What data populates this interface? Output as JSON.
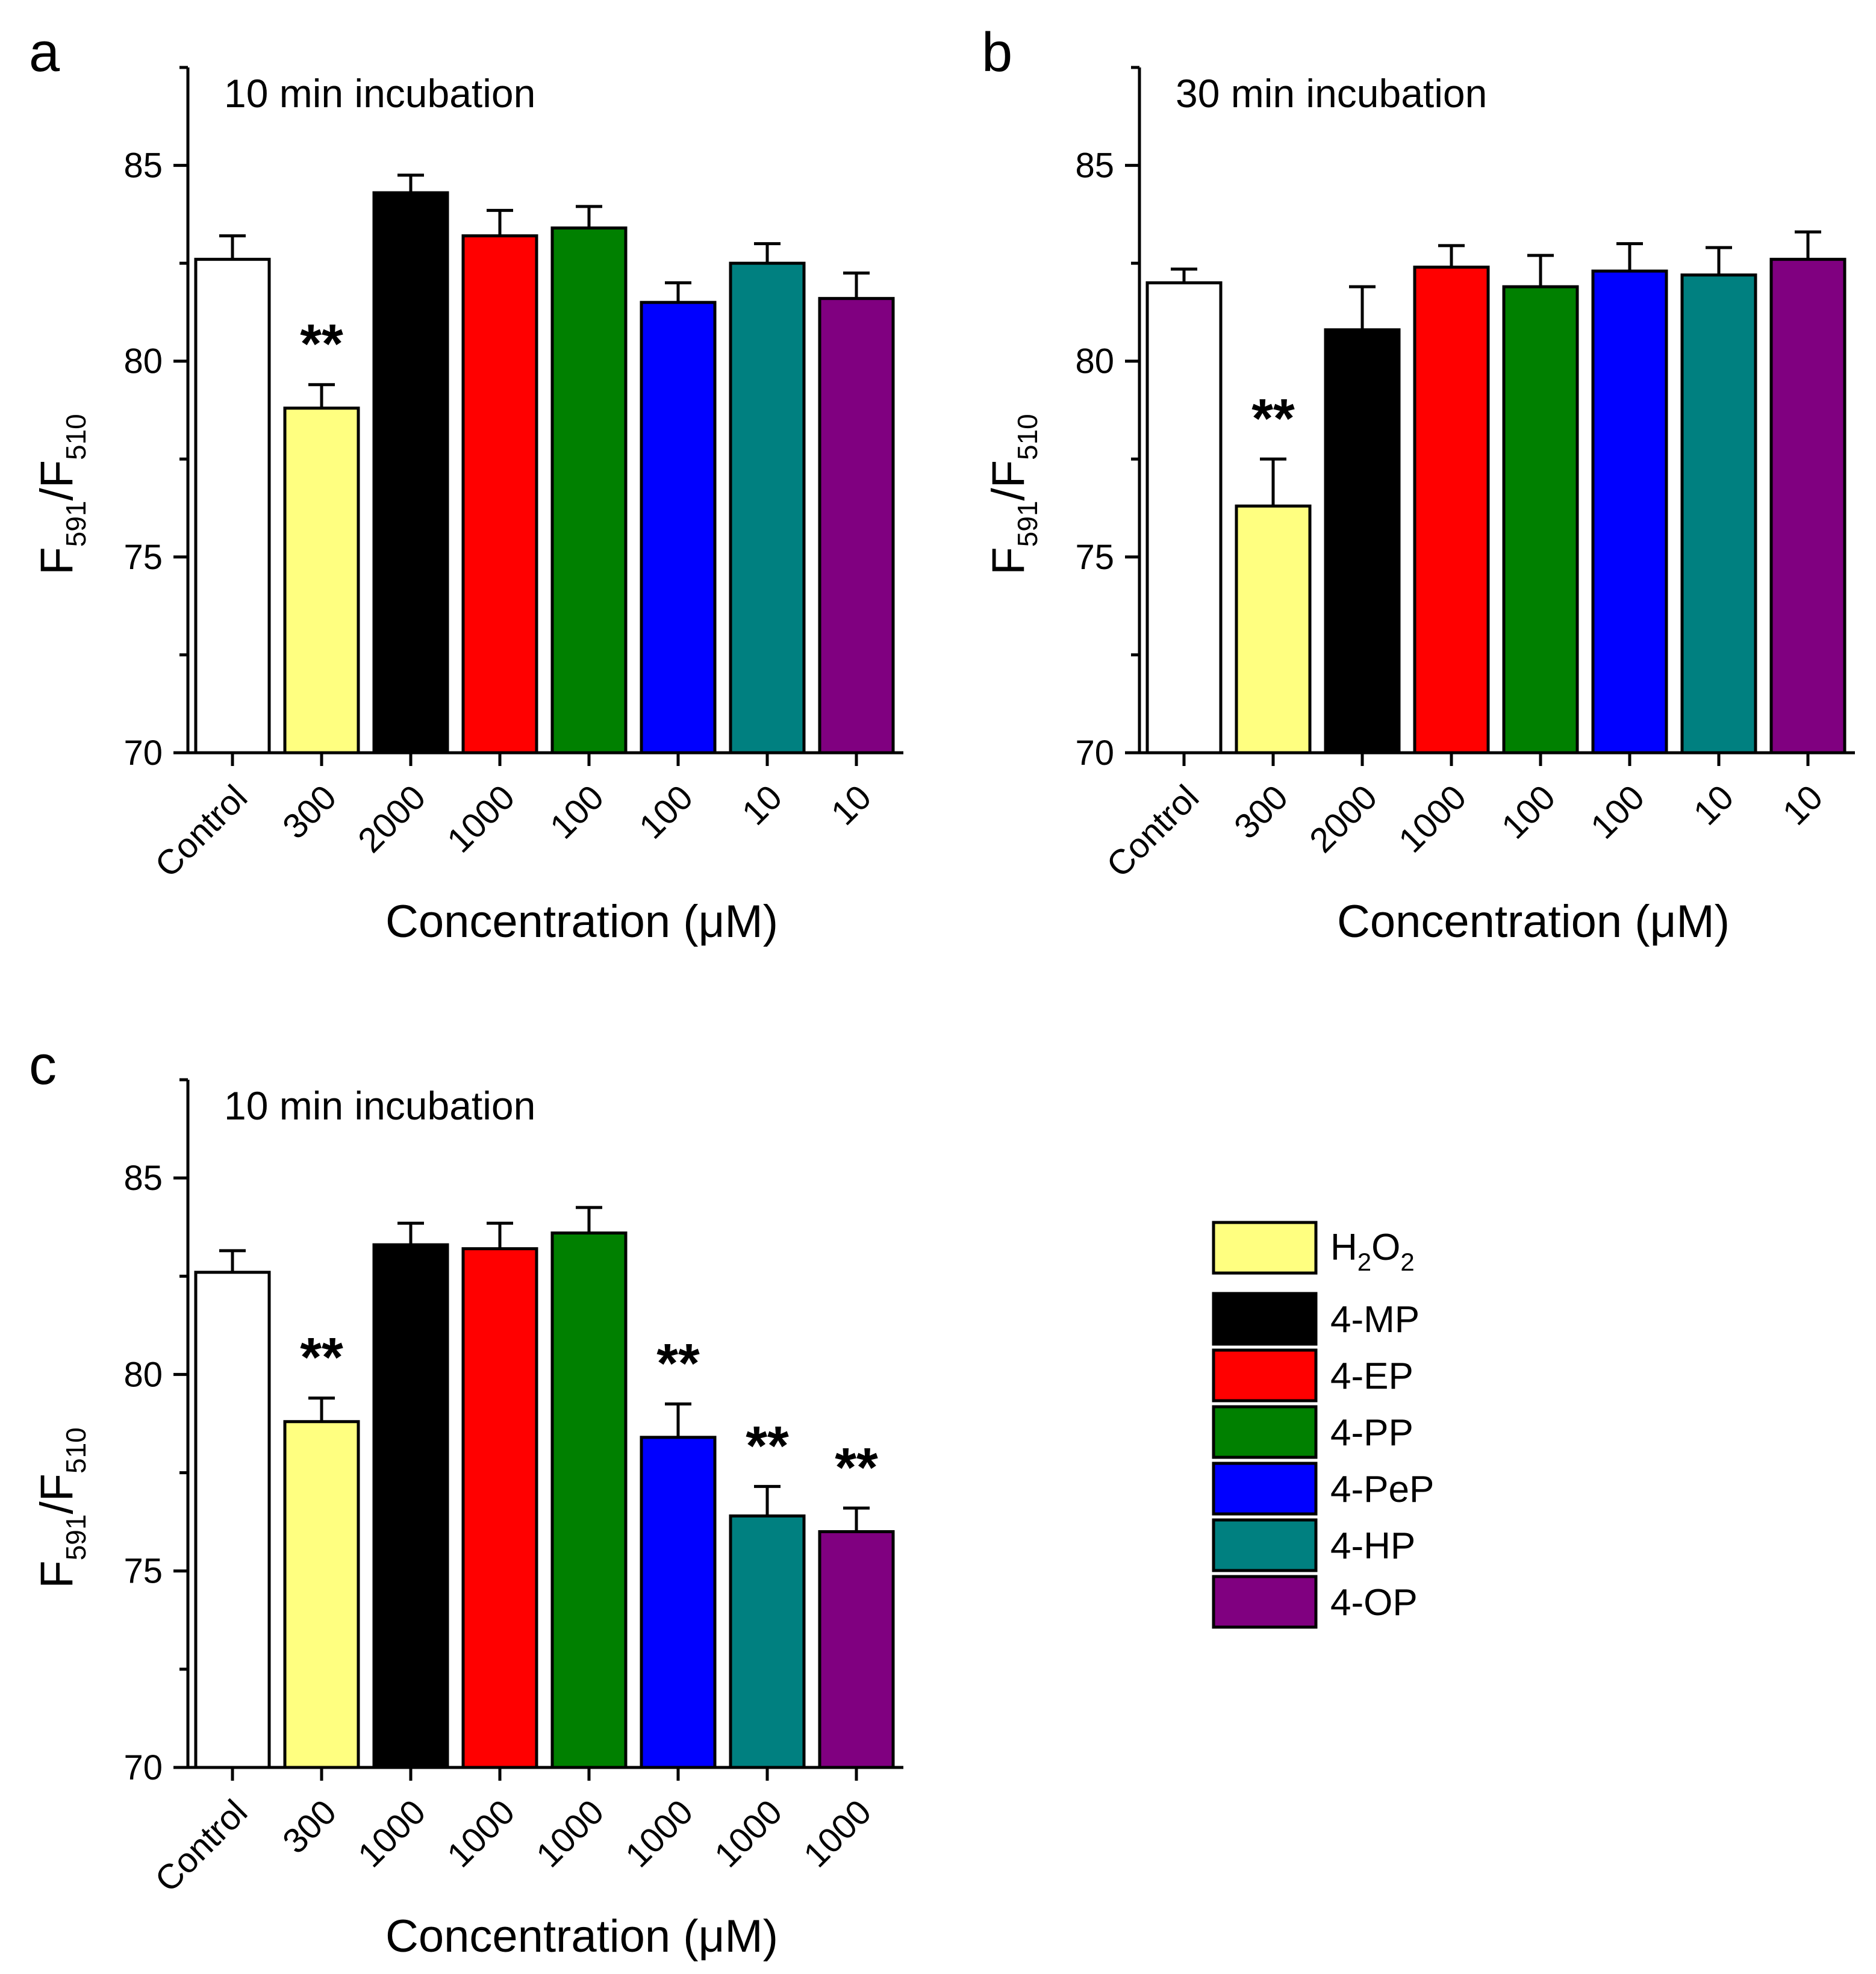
{
  "chart_data": [
    {
      "type": "bar",
      "panel": "a",
      "subtitle": "10 min incubation",
      "xlabel": "Concentration (μM)",
      "ylabel": "F591/F510",
      "ylim": [
        70,
        87.5
      ],
      "yticks": [
        70,
        75,
        80,
        85
      ],
      "categories": [
        "Control",
        "300",
        "2000",
        "1000",
        "100",
        "100",
        "10",
        "10"
      ],
      "compounds": [
        "Control",
        "H2O2",
        "4-MP",
        "4-EP",
        "4-PP",
        "4-PeP",
        "4-HP",
        "4-OP"
      ],
      "values": [
        82.6,
        78.8,
        84.3,
        83.2,
        83.4,
        81.5,
        82.5,
        81.6
      ],
      "errors": [
        0.6,
        0.6,
        0.45,
        0.65,
        0.55,
        0.5,
        0.5,
        0.65
      ],
      "significance": [
        "",
        "**",
        "",
        "",
        "",
        "",
        "",
        ""
      ]
    },
    {
      "type": "bar",
      "panel": "b",
      "subtitle": "30 min incubation",
      "xlabel": "Concentration (μM)",
      "ylabel": "F591/F510",
      "ylim": [
        70,
        87.5
      ],
      "yticks": [
        70,
        75,
        80,
        85
      ],
      "categories": [
        "Control",
        "300",
        "2000",
        "1000",
        "100",
        "100",
        "10",
        "10"
      ],
      "compounds": [
        "Control",
        "H2O2",
        "4-MP",
        "4-EP",
        "4-PP",
        "4-PeP",
        "4-HP",
        "4-OP"
      ],
      "values": [
        82.0,
        76.3,
        80.8,
        82.4,
        81.9,
        82.3,
        82.2,
        82.6
      ],
      "errors": [
        0.35,
        1.2,
        1.1,
        0.55,
        0.8,
        0.7,
        0.7,
        0.7
      ],
      "significance": [
        "",
        "**",
        "",
        "",
        "",
        "",
        "",
        ""
      ]
    },
    {
      "type": "bar",
      "panel": "c",
      "subtitle": "10 min incubation",
      "xlabel": "Concentration (μM)",
      "ylabel": "F591/F510",
      "ylim": [
        70,
        87.5
      ],
      "yticks": [
        70,
        75,
        80,
        85
      ],
      "categories": [
        "Control",
        "300",
        "1000",
        "1000",
        "1000",
        "1000",
        "1000",
        "1000"
      ],
      "compounds": [
        "Control",
        "H2O2",
        "4-MP",
        "4-EP",
        "4-PP",
        "4-PeP",
        "4-HP",
        "4-OP"
      ],
      "values": [
        82.6,
        78.8,
        83.3,
        83.2,
        83.6,
        78.4,
        76.4,
        76.0
      ],
      "errors": [
        0.55,
        0.6,
        0.55,
        0.65,
        0.65,
        0.85,
        0.75,
        0.6
      ],
      "significance": [
        "",
        "**",
        "",
        "",
        "",
        "**",
        "**",
        "**"
      ]
    }
  ],
  "colors": {
    "Control": "#ffffff",
    "H2O2": "#ffff80",
    "4-MP": "#000000",
    "4-EP": "#ff0000",
    "4-PP": "#008000",
    "4-PeP": "#0000ff",
    "4-HP": "#008080",
    "4-OP": "#800080"
  },
  "legend": [
    {
      "key": "H2O2",
      "label": "H2O2",
      "main": "H",
      "sub1": "2",
      "mid": "O",
      "sub2": "2"
    },
    {
      "key": "4-MP",
      "label": "4-MP"
    },
    {
      "key": "4-EP",
      "label": "4-EP"
    },
    {
      "key": "4-PP",
      "label": "4-PP"
    },
    {
      "key": "4-PeP",
      "label": "4-PeP"
    },
    {
      "key": "4-HP",
      "label": "4-HP"
    },
    {
      "key": "4-OP",
      "label": "4-OP"
    }
  ],
  "ylabel_parts": {
    "f1": "F",
    "s1": "591",
    "slash": "/F",
    "s2": "510"
  }
}
